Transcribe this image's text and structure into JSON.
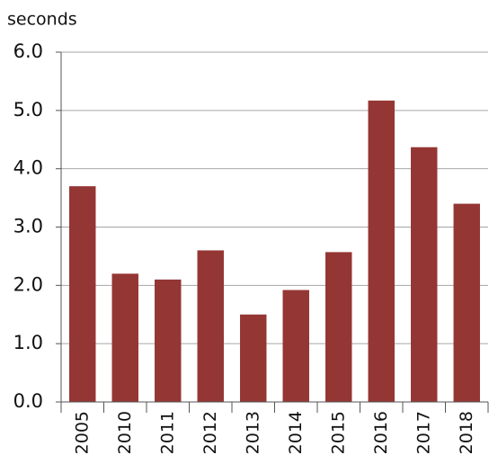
{
  "chart_data": {
    "type": "bar",
    "y_label": "seconds",
    "categories": [
      "2005",
      "2010",
      "2011",
      "2012",
      "2013",
      "2014",
      "2015",
      "2016",
      "2017",
      "2018"
    ],
    "values": [
      3.7,
      2.2,
      2.1,
      2.6,
      1.5,
      1.92,
      2.57,
      5.17,
      4.37,
      3.4
    ],
    "color": "#943634",
    "ylim": [
      0,
      6
    ],
    "yticks": [
      {
        "value": 0,
        "label": "0.0"
      },
      {
        "value": 1,
        "label": "1.0"
      },
      {
        "value": 2,
        "label": "2.0"
      },
      {
        "value": 3,
        "label": "3.0"
      },
      {
        "value": 4,
        "label": "4.0"
      },
      {
        "value": 5,
        "label": "5.0"
      },
      {
        "value": 6,
        "label": "6.0"
      }
    ],
    "grid": true
  }
}
